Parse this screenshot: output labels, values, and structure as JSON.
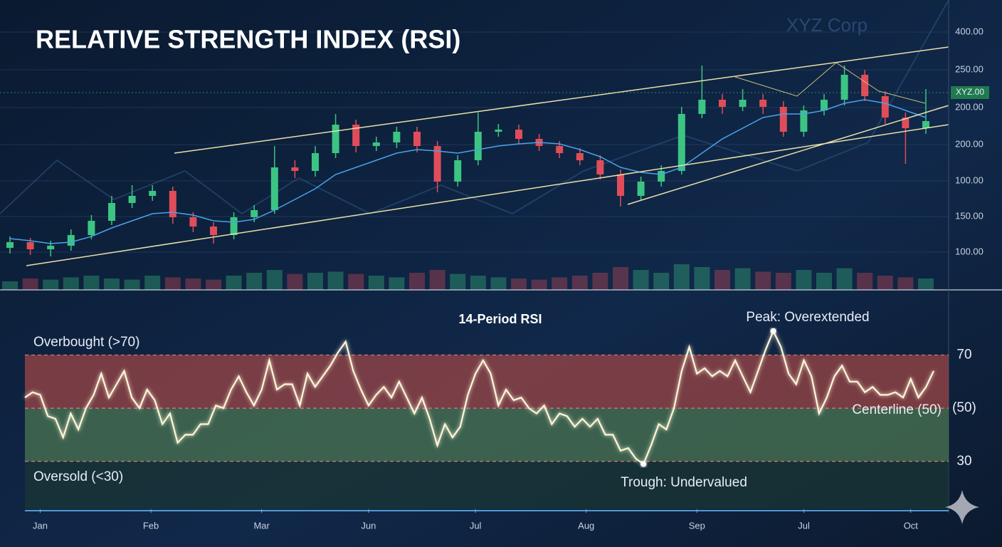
{
  "chart_data": [
    {
      "type": "candlestick",
      "title": "RELATIVE STRENGTH INDEX (RSI)",
      "watermark": "XYZ Corp",
      "price_tag": "XYZ.00",
      "axis_labels": [
        "400.00",
        "250.00",
        "200.00",
        "200.00",
        "100.00",
        "150.00",
        "100.00"
      ],
      "open": [
        62,
        70,
        60,
        65,
        80,
        100,
        125,
        135,
        142,
        105,
        92,
        80,
        105,
        115,
        175,
        170,
        195,
        235,
        205,
        210,
        225,
        205,
        155,
        185,
        225,
        228,
        215,
        205,
        195,
        185,
        165,
        135,
        155,
        170,
        250,
        270,
        260,
        270,
        260,
        225,
        255,
        270,
        305,
        275,
        245,
        230
      ],
      "high": [
        78,
        76,
        72,
        88,
        108,
        135,
        150,
        150,
        148,
        112,
        98,
        112,
        122,
        205,
        185,
        205,
        250,
        242,
        218,
        232,
        232,
        212,
        192,
        252,
        236,
        235,
        222,
        212,
        202,
        192,
        172,
        162,
        178,
        260,
        318,
        278,
        285,
        278,
        268,
        262,
        278,
        318,
        312,
        282,
        252,
        285
      ],
      "low": [
        54,
        52,
        50,
        58,
        74,
        94,
        118,
        128,
        96,
        84,
        68,
        74,
        98,
        110,
        160,
        162,
        188,
        196,
        198,
        202,
        196,
        140,
        148,
        178,
        218,
        208,
        198,
        188,
        178,
        158,
        120,
        128,
        148,
        165,
        244,
        250,
        254,
        250,
        218,
        218,
        248,
        262,
        268,
        236,
        180,
        222
      ],
      "close": [
        70,
        60,
        65,
        80,
        100,
        125,
        135,
        142,
        105,
        92,
        80,
        105,
        115,
        175,
        170,
        195,
        235,
        205,
        210,
        225,
        205,
        155,
        185,
        225,
        228,
        215,
        205,
        195,
        185,
        165,
        135,
        155,
        170,
        250,
        270,
        260,
        270,
        260,
        225,
        255,
        270,
        305,
        275,
        245,
        230,
        240
      ],
      "ma": [
        75,
        72,
        68,
        70,
        78,
        90,
        100,
        110,
        112,
        108,
        100,
        98,
        102,
        115,
        130,
        145,
        165,
        175,
        185,
        195,
        200,
        198,
        195,
        200,
        205,
        208,
        210,
        208,
        200,
        190,
        175,
        168,
        165,
        175,
        195,
        215,
        230,
        245,
        250,
        250,
        255,
        265,
        270,
        265,
        255,
        245
      ],
      "volume": [
        15,
        20,
        18,
        22,
        25,
        20,
        18,
        25,
        22,
        20,
        18,
        25,
        30,
        35,
        28,
        30,
        32,
        28,
        25,
        22,
        30,
        35,
        28,
        25,
        22,
        20,
        18,
        22,
        25,
        30,
        40,
        35,
        30,
        45,
        40,
        35,
        38,
        32,
        30,
        35,
        30,
        38,
        30,
        25,
        22,
        20
      ],
      "ylim": [
        0,
        370
      ],
      "vlim": [
        0,
        100
      ],
      "up_color": "#3cc482",
      "down_color": "#e04d5a",
      "ma_color": "#4aa3e8"
    },
    {
      "type": "line",
      "subtitle": "14-Period RSI",
      "labels": {
        "overbought": "Overbought (>70)",
        "oversold": "Oversold (<30)",
        "centerline": "Centerline (50)",
        "peak": "Peak: Overextended",
        "trough": "Trough: Undervalued"
      },
      "values": [
        54,
        56,
        55,
        47,
        46,
        39,
        48,
        42,
        50,
        55,
        63,
        54,
        59,
        64,
        54,
        50,
        57,
        53,
        44,
        48,
        37,
        40,
        40,
        44,
        44,
        51,
        50,
        57,
        62,
        56,
        51,
        57,
        68,
        57,
        59,
        59,
        51,
        63,
        58,
        62,
        66,
        71,
        75,
        64,
        57,
        51,
        55,
        58,
        54,
        60,
        54,
        48,
        54,
        46,
        36,
        44,
        39,
        43,
        55,
        63,
        68,
        63,
        51,
        57,
        53,
        54,
        50,
        48,
        51,
        44,
        48,
        47,
        43,
        46,
        43,
        46,
        40,
        40,
        34,
        35,
        31,
        29,
        36,
        44,
        42,
        50,
        64,
        73,
        63,
        65,
        62,
        64,
        62,
        68,
        62,
        56,
        64,
        72,
        79,
        73,
        63,
        59,
        68,
        62,
        48,
        54,
        62,
        66,
        60,
        60,
        56,
        58,
        55,
        55,
        56,
        54,
        61,
        54,
        58,
        64
      ],
      "xlim": [
        0,
        119
      ],
      "xticks": [
        {
          "value": 2,
          "label": "Jan"
        },
        {
          "value": 16.5,
          "label": "Feb"
        },
        {
          "value": 31,
          "label": "Mar"
        },
        {
          "value": 45,
          "label": "Jun"
        },
        {
          "value": 59,
          "label": "Jul"
        },
        {
          "value": 73.5,
          "label": "Aug"
        },
        {
          "value": 88,
          "label": "Sep"
        },
        {
          "value": 102,
          "label": "Jul"
        },
        {
          "value": 116,
          "label": "Oct"
        }
      ],
      "ylim": [
        12,
        91
      ],
      "yticks": [
        70,
        {
          "value": 50,
          "label": "(50)"
        },
        30
      ],
      "bands": [
        {
          "from": 50,
          "to": 70,
          "color": "#9c4646"
        },
        {
          "from": 30,
          "to": 50,
          "color": "#4b7552"
        },
        {
          "from": 12,
          "to": 30,
          "color": "#1a3634"
        }
      ],
      "peak_index": 98,
      "trough_index": 81,
      "grid": true,
      "color": "#fff6d8"
    }
  ]
}
